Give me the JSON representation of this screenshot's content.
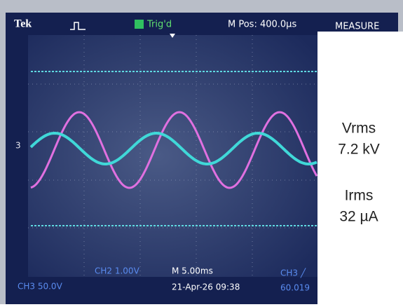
{
  "header": {
    "brand": "Tek",
    "trigger": "Trig'd",
    "position": "M Pos: 400.0µs",
    "menu": "MEASURE"
  },
  "channel_marker": "3",
  "footer": {
    "ch2": "CH2 1.00V",
    "timebase": "M 5.00ms",
    "ch3": "CH3 50.0V",
    "datetime": "21-Apr-26 09:38",
    "trigger_source": "CH3 ╱",
    "frequency": "60.019"
  },
  "measurements": [
    {
      "label": "Vrms",
      "value": "7.2 kV"
    },
    {
      "label": "Irms",
      "value": "32 µA"
    }
  ]
}
